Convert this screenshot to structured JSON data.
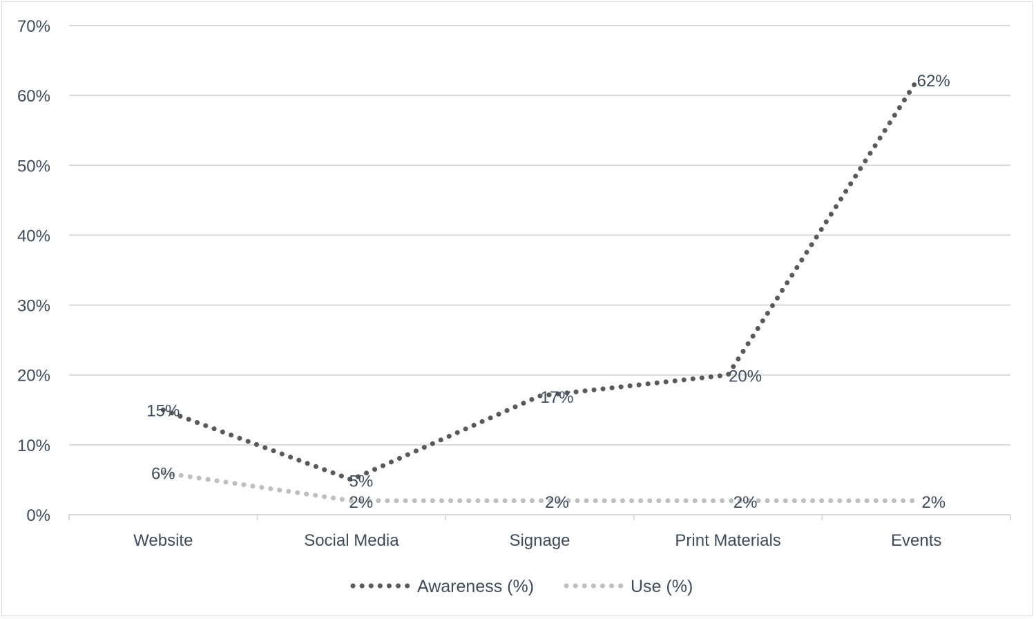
{
  "chart_data": {
    "type": "line",
    "categories": [
      "Website",
      "Social Media",
      "Signage",
      "Print Materials",
      "Events"
    ],
    "series": [
      {
        "name": "Awareness (%)",
        "values": [
          15,
          5,
          17,
          20,
          62
        ],
        "labels": [
          "15%",
          "5%",
          "17%",
          "20%",
          "62%"
        ],
        "color": "#595959",
        "line_style": "dotted"
      },
      {
        "name": "Use (%)",
        "values": [
          6,
          2,
          2,
          2,
          2
        ],
        "labels": [
          "6%",
          "2%",
          "2%",
          "2%",
          "2%"
        ],
        "color": "#bfbfbf",
        "line_style": "dotted"
      }
    ],
    "yticks": [
      "0%",
      "10%",
      "20%",
      "30%",
      "40%",
      "50%",
      "60%",
      "70%"
    ],
    "ylim": [
      0,
      70
    ],
    "grid": true,
    "legend_position": "bottom",
    "gridline_color": "#d9d9d9",
    "text_color": "#3f4b5b"
  }
}
